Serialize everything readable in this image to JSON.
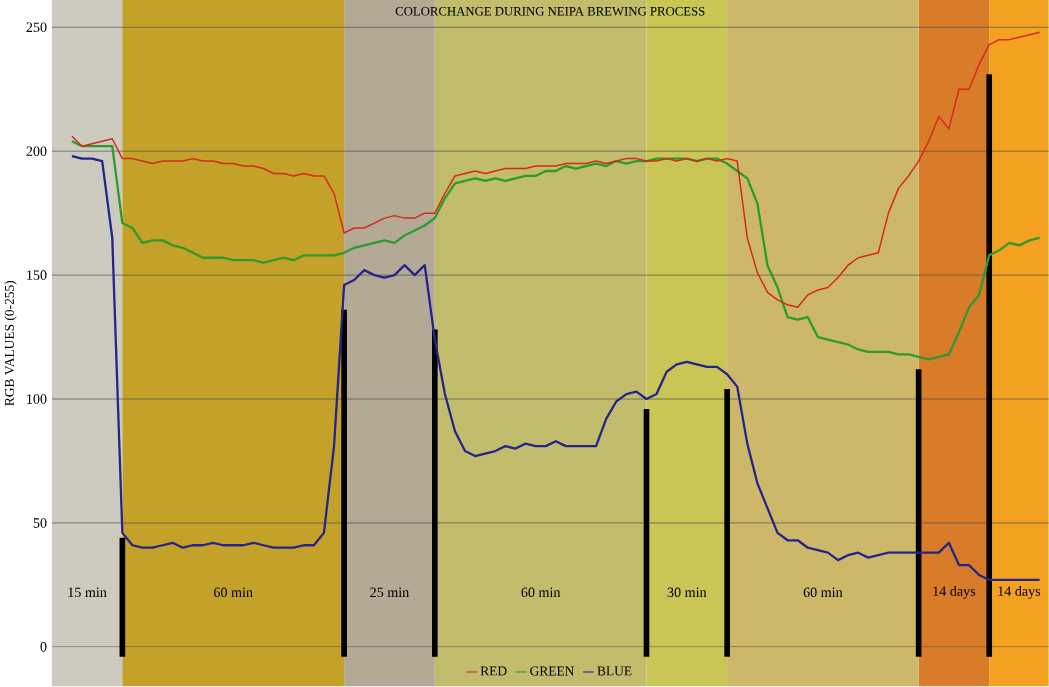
{
  "chart_data": {
    "type": "line",
    "title": "COLORCHANGE DURING NEIPA BREWING PROCESS",
    "ylabel": "RGB VALUES (0-255)",
    "categories": [
      null,
      null,
      null,
      null,
      null,
      null,
      null,
      null,
      null,
      null,
      null,
      null,
      null,
      null,
      null,
      null,
      null,
      null,
      null,
      null,
      null,
      null,
      null,
      null,
      null,
      null,
      null,
      null,
      null,
      null,
      null,
      null,
      null,
      null,
      null,
      null,
      null,
      null,
      null,
      null,
      null,
      null,
      null,
      null,
      null,
      null,
      null,
      null,
      null,
      null,
      null,
      null,
      null,
      null,
      null,
      null,
      null,
      null,
      null,
      null,
      null,
      null,
      null,
      null,
      null,
      null,
      null,
      null,
      null,
      null,
      null,
      null,
      null,
      null,
      null,
      null,
      null,
      null,
      null,
      null,
      null,
      null,
      null,
      null,
      null,
      null,
      null,
      null,
      null,
      null,
      null,
      null,
      null,
      null,
      null,
      null,
      null
    ],
    "series": [
      {
        "name": "RED",
        "color": "#d42a1e",
        "values": [
          206,
          202,
          203,
          204,
          205,
          197,
          197,
          196,
          195,
          196,
          196,
          196,
          197,
          196,
          196,
          195,
          195,
          194,
          194,
          193,
          191,
          191,
          190,
          191,
          190,
          190,
          183,
          167,
          169,
          169,
          171,
          173,
          174,
          173,
          173,
          175,
          175,
          183,
          190,
          191,
          192,
          191,
          192,
          193,
          193,
          193,
          194,
          194,
          194,
          195,
          195,
          195,
          196,
          195,
          196,
          197,
          197,
          196,
          196,
          197,
          196,
          197,
          196,
          197,
          196,
          197,
          196,
          165,
          151,
          143,
          140,
          138,
          137,
          142,
          144,
          145,
          149,
          154,
          157,
          158,
          159,
          175,
          185,
          190,
          196,
          204,
          214,
          209,
          225,
          225,
          235,
          243,
          245,
          245,
          246,
          247,
          248
        ]
      },
      {
        "name": "GREEN",
        "color": "#2e9a2e",
        "values": [
          204,
          202,
          202,
          202,
          202,
          171,
          169,
          163,
          164,
          164,
          162,
          161,
          159,
          157,
          157,
          157,
          156,
          156,
          156,
          155,
          156,
          157,
          156,
          158,
          158,
          158,
          158,
          159,
          161,
          162,
          163,
          164,
          163,
          166,
          168,
          170,
          173,
          181,
          187,
          188,
          189,
          188,
          189,
          188,
          189,
          190,
          190,
          192,
          192,
          194,
          193,
          194,
          195,
          194,
          196,
          195,
          196,
          196,
          197,
          197,
          197,
          197,
          196,
          197,
          197,
          195,
          192,
          189,
          179,
          154,
          145,
          133,
          132,
          133,
          125,
          124,
          123,
          122,
          120,
          119,
          119,
          119,
          118,
          118,
          117,
          116,
          117,
          118,
          127,
          137,
          142,
          158,
          160,
          163,
          162,
          164,
          165
        ]
      },
      {
        "name": "BLUE",
        "color": "#24248c",
        "values": [
          198,
          197,
          197,
          196,
          165,
          46,
          41,
          40,
          40,
          41,
          42,
          40,
          41,
          41,
          42,
          41,
          41,
          41,
          42,
          41,
          40,
          40,
          40,
          41,
          41,
          46,
          81,
          146,
          148,
          152,
          150,
          149,
          150,
          154,
          150,
          154,
          124,
          102,
          87,
          79,
          77,
          78,
          79,
          81,
          80,
          82,
          81,
          81,
          83,
          81,
          81,
          81,
          81,
          92,
          99,
          102,
          103,
          100,
          102,
          111,
          114,
          115,
          114,
          113,
          113,
          110,
          105,
          82,
          66,
          56,
          46,
          43,
          43,
          40,
          39,
          38,
          35,
          37,
          38,
          36,
          37,
          38,
          38,
          38,
          38,
          38,
          38,
          42,
          33,
          33,
          29,
          27,
          27,
          27,
          27,
          27,
          27
        ]
      },
      {
        "type": "bar",
        "color": "#000000",
        "values": [
          null,
          null,
          null,
          null,
          null,
          48,
          null,
          null,
          null,
          null,
          null,
          null,
          null,
          null,
          null,
          null,
          null,
          null,
          null,
          null,
          null,
          null,
          null,
          null,
          null,
          null,
          null,
          140,
          null,
          null,
          null,
          null,
          null,
          null,
          null,
          null,
          132,
          null,
          null,
          null,
          null,
          null,
          null,
          null,
          null,
          null,
          null,
          null,
          null,
          null,
          null,
          null,
          null,
          null,
          null,
          null,
          null,
          100,
          null,
          null,
          null,
          null,
          null,
          null,
          null,
          108,
          null,
          null,
          null,
          null,
          null,
          null,
          null,
          null,
          null,
          null,
          null,
          null,
          null,
          null,
          null,
          null,
          null,
          null,
          116,
          null,
          null,
          null,
          null,
          null,
          null,
          235,
          null,
          null,
          null,
          null,
          null
        ],
        "base": [
          null,
          null,
          null,
          null,
          null,
          -4,
          null,
          null,
          null,
          null,
          null,
          null,
          null,
          null,
          null,
          null,
          null,
          null,
          null,
          null,
          null,
          null,
          null,
          null,
          null,
          null,
          null,
          -4,
          null,
          null,
          null,
          null,
          null,
          null,
          null,
          null,
          -4,
          null,
          null,
          null,
          null,
          null,
          null,
          null,
          null,
          null,
          null,
          null,
          null,
          null,
          null,
          null,
          null,
          null,
          null,
          null,
          null,
          -4,
          null,
          null,
          null,
          null,
          null,
          null,
          null,
          -4,
          null,
          null,
          null,
          null,
          null,
          null,
          null,
          null,
          null,
          null,
          null,
          null,
          null,
          null,
          null,
          null,
          null,
          null,
          -4,
          null,
          null,
          null,
          null,
          null,
          null,
          -4,
          null,
          null,
          null,
          null,
          null
        ]
      }
    ],
    "annotations": [
      "15 min",
      "60 min",
      "25 min",
      "60 min",
      "30 min",
      "60 min",
      "14 days",
      "14 days"
    ],
    "ylim": [
      -16,
      261
    ],
    "yticks": [
      0,
      50,
      100,
      150,
      200,
      250
    ],
    "grid": "y",
    "legend": "bottom",
    "tick_labels": "y"
  }
}
